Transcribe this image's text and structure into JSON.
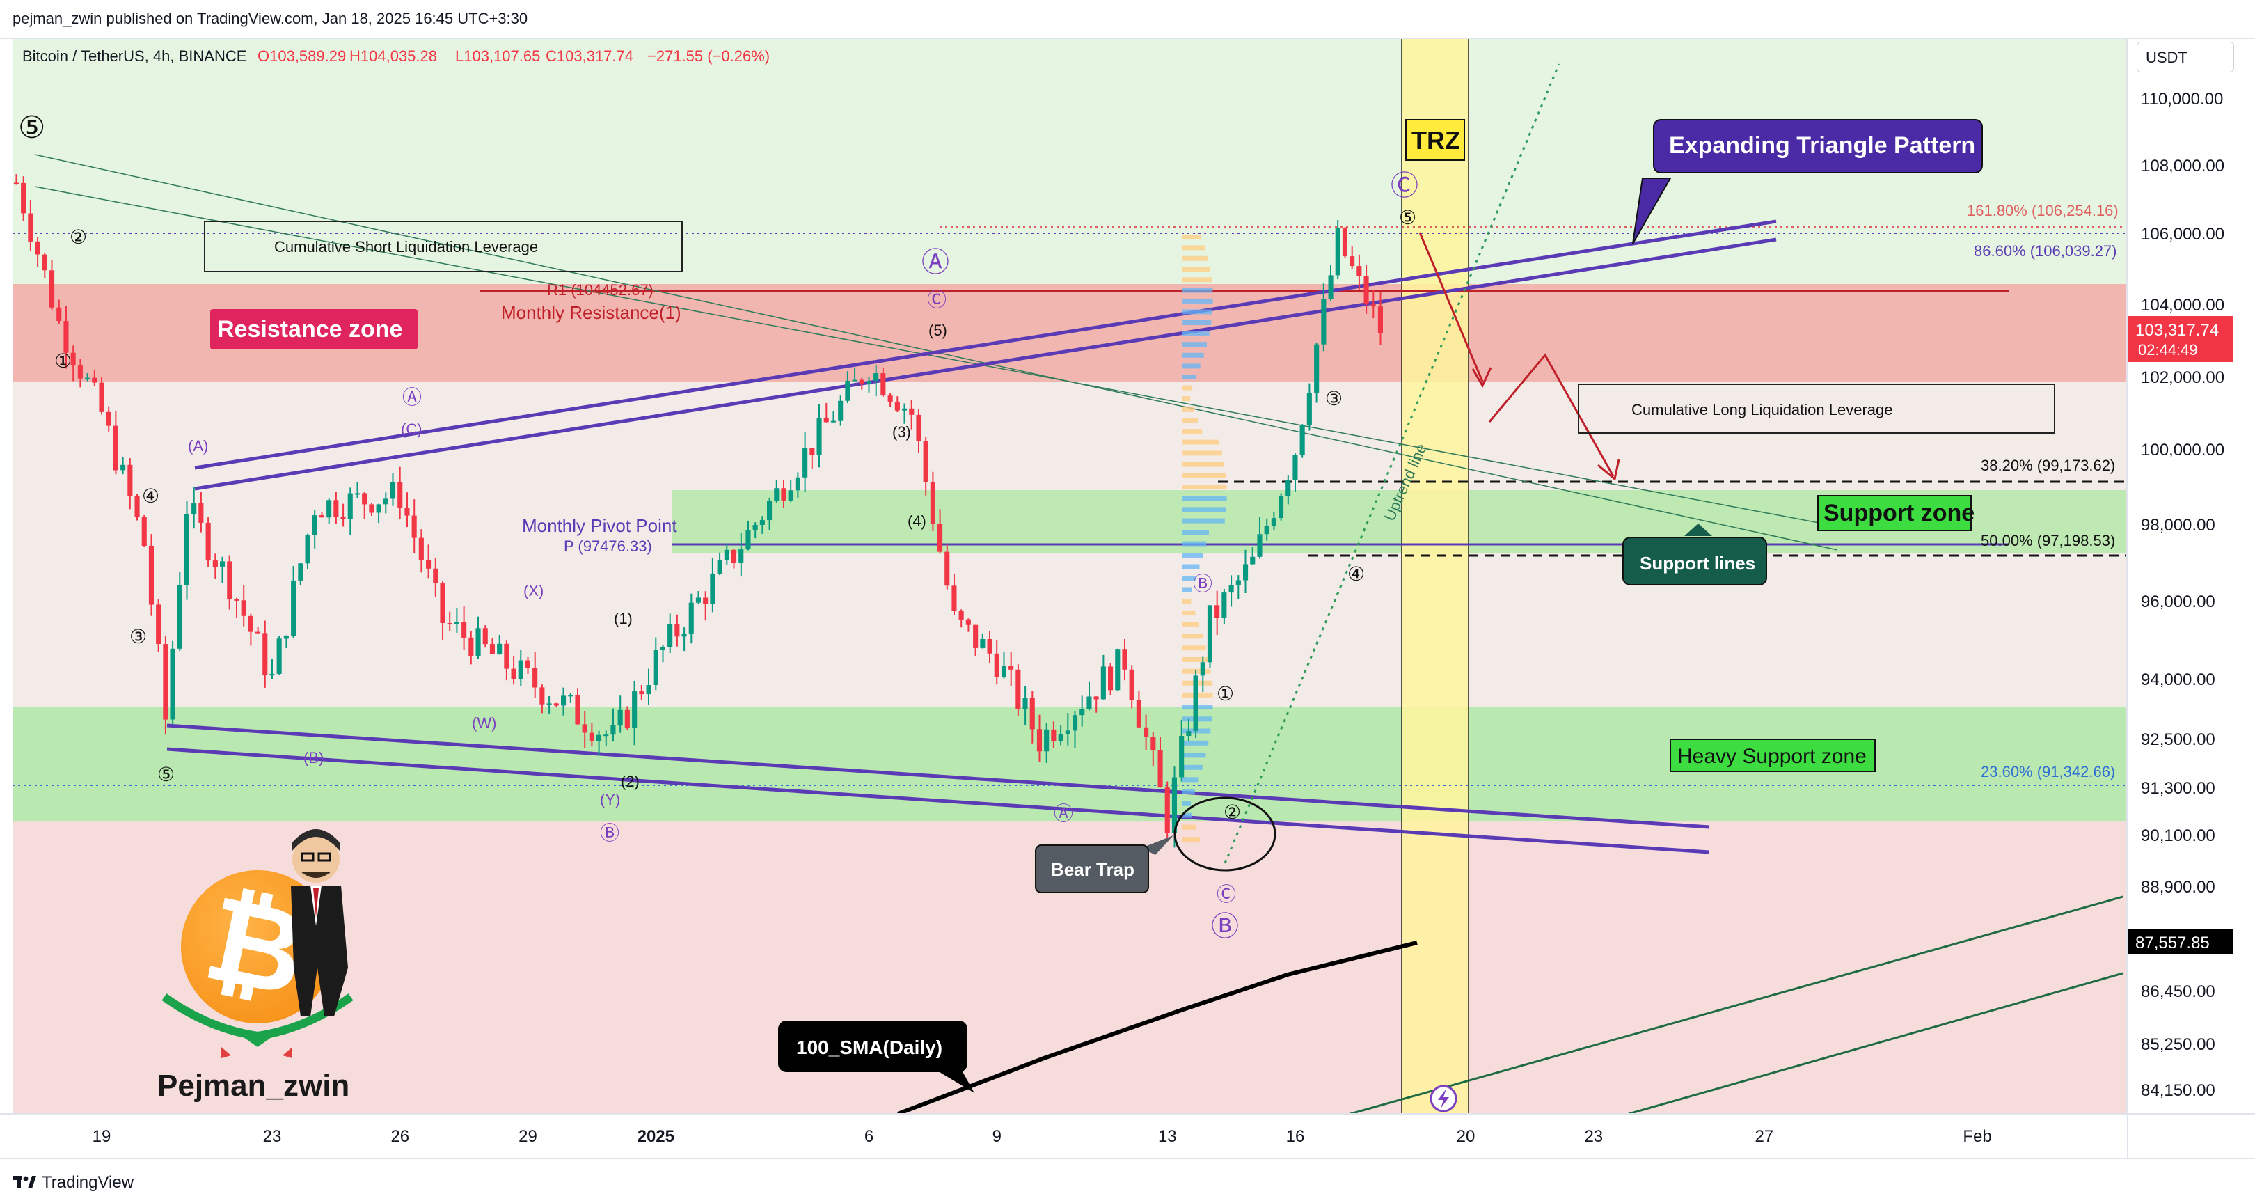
{
  "header": {
    "published_line": "pejman_zwin published on TradingView.com, Jan 18, 2025 16:45 UTC+3:30",
    "symbol": "Bitcoin / TetherUS, 4h, BINANCE",
    "ohlc_open": "O103,589.29",
    "ohlc_high": "H104,035.28",
    "ohlc_low": "L103,107.65",
    "ohlc_close": "C103,317.74",
    "ohlc_change": "−271.55 (−0.26%)"
  },
  "footer": {
    "brand": "TradingView"
  },
  "price_axis": {
    "currency_button": "USDT",
    "current_price": "103,317.74",
    "countdown": "02:44:49",
    "sma_price": "87,557.85"
  },
  "colors": {
    "candle_up": "#089981",
    "candle_down": "#f23645",
    "resistance_zone": "#f2b6b0",
    "support_zone": "#a8e6a0",
    "trz": "#fff176",
    "pattern_line": "#5b3bb5",
    "wave_label": "#7b3fbf"
  },
  "annotations": {
    "resistance_zone": "Resistance zone",
    "support_zone": "Support zone",
    "heavy_support_zone": "Heavy Support zone",
    "support_lines": "Support lines",
    "expanding_triangle": "Expanding Triangle Pattern",
    "trz": "TRZ",
    "bear_trap": "Bear Trap",
    "sma_label": "100_SMA(Daily)",
    "cum_short": "Cumulative Short Liquidation Leverage",
    "cum_long": "Cumulative Long Liquidation Leverage",
    "monthly_resistance": "Monthly Resistance(1)",
    "r1": "R1 (104452.67)",
    "monthly_pivot": "Monthly Pivot Point",
    "pivot_p": "P (97476.33)",
    "fib_1618": "161.80% (106,254.16)",
    "fib_866": "86.60% (106,039.27)",
    "fib_382": "38.20% (99,173.62)",
    "fib_50": "50.00% (97,198.53)",
    "fib_236": "23.60% (91,342.66)",
    "uptrend_line": "Uptrend line",
    "author": "Pejman_zwin"
  },
  "wave_labels": {
    "w5_top": "⑤",
    "w2_top": "②",
    "w1": "①",
    "w3": "③",
    "w4": "④",
    "w5_bottom": "⑤",
    "A_paren": "(A)",
    "B_paren": "(B)",
    "W_paren": "(W)",
    "X_paren": "(X)",
    "Y_paren": "(Y)",
    "A_circ_small": "Ⓐ",
    "C_paren": "(C)",
    "B_circ": "Ⓑ",
    "one_paren": "(1)",
    "two_paren": "(2)",
    "three_paren": "(3)",
    "four_paren": "(4)",
    "five_paren": "(5)",
    "A_big": "Ⓐ",
    "C_small_mid": "Ⓒ",
    "A_small_bottom": "Ⓐ",
    "B_circ_mid": "Ⓑ",
    "one_circ": "①",
    "two_circ": "②",
    "C_circ_small": "Ⓒ",
    "B_big": "Ⓑ",
    "three_circ_r": "③",
    "four_circ_r": "④",
    "five_circ_r": "⑤",
    "C_big": "Ⓒ"
  },
  "chart_data": {
    "type": "candlestick",
    "symbol": "Bitcoin / TetherUS",
    "timeframe": "4h",
    "exchange": "BINANCE",
    "x_tick_labels": [
      "19",
      "23",
      "26",
      "29",
      "2025",
      "6",
      "9",
      "13",
      "16",
      "20",
      "23",
      "27",
      "Feb"
    ],
    "y_tick_labels": [
      "110,000.00",
      "108,000.00",
      "106,000.00",
      "104,000.00",
      "102,000.00",
      "100,000.00",
      "98,000.00",
      "96,000.00",
      "94,000.00",
      "92,500.00",
      "91,300.00",
      "90,100.00",
      "88,900.00",
      "86,450.00",
      "85,250.00",
      "84,150.00"
    ],
    "approx_close_path": [
      [
        "Dec 17",
        107500
      ],
      [
        "Dec 18",
        103500
      ],
      [
        "Dec 19",
        101000
      ],
      [
        "Dec 20",
        97500
      ],
      [
        "Dec 20",
        93000
      ],
      [
        "Dec 21",
        98500
      ],
      [
        "Dec 22",
        96500
      ],
      [
        "Dec 23",
        94000
      ],
      [
        "Dec 24",
        98500
      ],
      [
        "Dec 26",
        98800
      ],
      [
        "Dec 27",
        95500
      ],
      [
        "Dec 29",
        94000
      ],
      [
        "Dec 31",
        92500
      ],
      [
        "Jan 1",
        94500
      ],
      [
        "Jan 3",
        97500
      ],
      [
        "Jan 6",
        102300
      ],
      [
        "Jan 7",
        101000
      ],
      [
        "Jan 8",
        95500
      ],
      [
        "Jan 9",
        94500
      ],
      [
        "Jan 10",
        92500
      ],
      [
        "Jan 12",
        94500
      ],
      [
        "Jan 13",
        90500
      ],
      [
        "Jan 14",
        95500
      ],
      [
        "Jan 15",
        97000
      ],
      [
        "Jan 16",
        100000
      ],
      [
        "Jan 17",
        105800
      ],
      [
        "Jan 18",
        103317.74
      ]
    ],
    "sma_100_daily": 87557.85,
    "zones": [
      {
        "name": "Resistance zone",
        "from": 101900,
        "to": 104600
      },
      {
        "name": "Support zone",
        "from": 97400,
        "to": 98900
      },
      {
        "name": "Heavy Support zone",
        "from": 90300,
        "to": 93100
      }
    ],
    "fib_levels": [
      {
        "label": "161.80%",
        "price": 106254.16
      },
      {
        "label": "86.60%",
        "price": 106039.27
      },
      {
        "label": "38.20%",
        "price": 99173.62
      },
      {
        "label": "50.00%",
        "price": 97198.53
      },
      {
        "label": "23.60%",
        "price": 91342.66
      }
    ],
    "pivots": [
      {
        "label": "R1",
        "price": 104452.67
      },
      {
        "label": "P",
        "price": 97476.33
      }
    ]
  }
}
